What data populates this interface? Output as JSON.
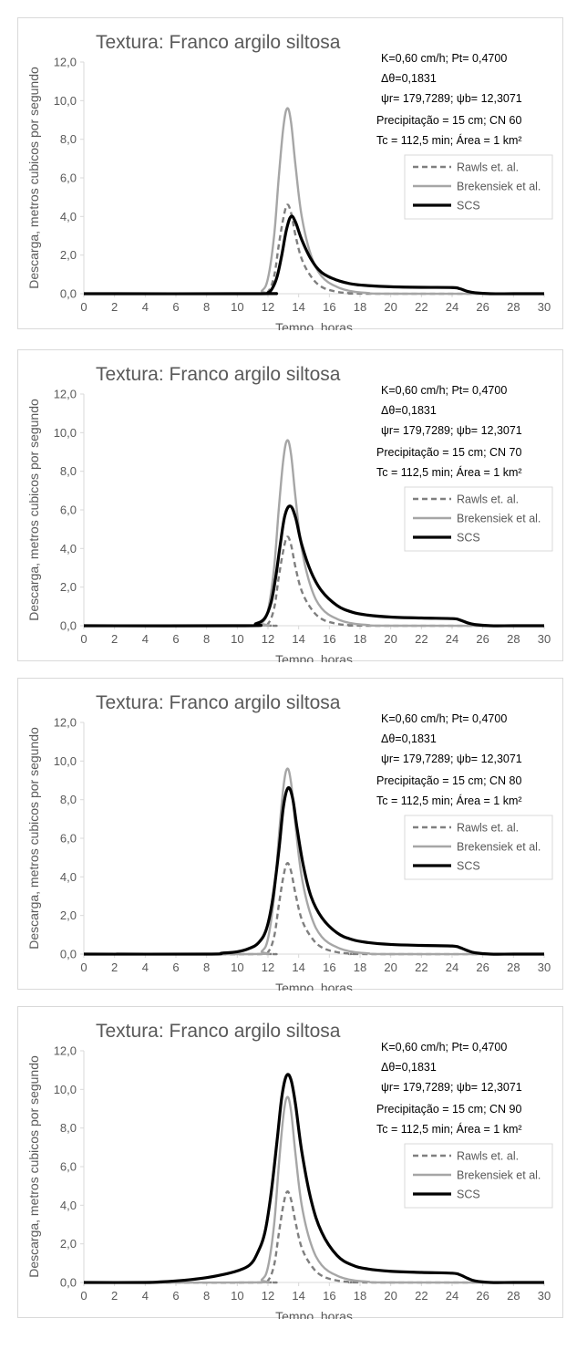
{
  "chart_data": [
    {
      "type": "line",
      "title": "Textura: Franco argilo siltosa",
      "xlabel": "Tempo, horas",
      "ylabel": "Descarga, metros cubicos por segundo",
      "xlim": [
        0,
        30
      ],
      "ylim": [
        0,
        12
      ],
      "x_ticks": [
        "0",
        "2",
        "4",
        "6",
        "8",
        "10",
        "12",
        "14",
        "16",
        "18",
        "20",
        "22",
        "24",
        "26",
        "28",
        "30"
      ],
      "y_ticks": [
        "0,0",
        "2,0",
        "4,0",
        "6,0",
        "8,0",
        "10,0",
        "12,0"
      ],
      "grid": false,
      "legend_position": "right",
      "annotations": [
        "K=0,60 cm/h; Pt= 0,4700",
        "Δθ=0,1831",
        "ψr= 179,7289;  ψb= 12,3071",
        "Precipitação = 15 cm; CN 60",
        "Tc = 112,5 min; Área = 1 km²"
      ],
      "series": [
        {
          "name": "Rawls et. al.",
          "color": "#7f7f7f",
          "dash": "dashed",
          "x": [
            0,
            11.5,
            12.0,
            12.4,
            12.7,
            13.0,
            13.25,
            13.5,
            13.8,
            14.2,
            14.8,
            15.5,
            16.5,
            17.5,
            18.5,
            30
          ],
          "y": [
            0,
            0,
            0.1,
            0.9,
            2.5,
            3.9,
            4.6,
            4.2,
            3.0,
            1.8,
            0.9,
            0.35,
            0.1,
            0.02,
            0,
            0
          ]
        },
        {
          "name": "Brekensiek et al.",
          "color": "#a6a6a6",
          "dash": "solid",
          "x": [
            0,
            11.0,
            11.6,
            12.0,
            12.4,
            12.7,
            13.0,
            13.25,
            13.5,
            13.8,
            14.2,
            14.8,
            15.5,
            16.5,
            17.5,
            18.5,
            20,
            30
          ],
          "y": [
            0,
            0,
            0.15,
            0.8,
            3.0,
            6.0,
            8.6,
            9.6,
            8.9,
            6.6,
            4.0,
            2.0,
            0.9,
            0.35,
            0.12,
            0.04,
            0,
            0
          ]
        },
        {
          "name": "SCS",
          "color": "#000000",
          "dash": "solid",
          "x": [
            0,
            11.5,
            12.0,
            12.3,
            12.6,
            12.9,
            13.2,
            13.5,
            13.8,
            14.2,
            14.8,
            15.5,
            16.5,
            17.5,
            18.5,
            20,
            22,
            24,
            24.5,
            25,
            25.5,
            26.5,
            28,
            30
          ],
          "y": [
            0,
            0,
            0.05,
            0.3,
            0.9,
            2.0,
            3.3,
            4.0,
            3.7,
            2.8,
            1.8,
            1.1,
            0.7,
            0.5,
            0.42,
            0.36,
            0.33,
            0.32,
            0.26,
            0.12,
            0.05,
            0,
            0,
            0
          ]
        }
      ]
    },
    {
      "type": "line",
      "title": "Textura: Franco argilo siltosa",
      "xlabel": "Tempo, horas",
      "ylabel": "Descarga, metros cubicos por segundo",
      "xlim": [
        0,
        30
      ],
      "ylim": [
        0,
        12
      ],
      "x_ticks": [
        "0",
        "2",
        "4",
        "6",
        "8",
        "10",
        "12",
        "14",
        "16",
        "18",
        "20",
        "22",
        "24",
        "26",
        "28",
        "30"
      ],
      "y_ticks": [
        "0,0",
        "2,0",
        "4,0",
        "6,0",
        "8,0",
        "10,0",
        "12,0"
      ],
      "grid": false,
      "legend_position": "right",
      "annotations": [
        "K=0,60 cm/h; Pt= 0,4700",
        "Δθ=0,1831",
        "ψr= 179,7289;  ψb= 12,3071",
        "Precipitação = 15 cm; CN 70",
        "Tc = 112,5 min; Área = 1 km²"
      ],
      "series": [
        {
          "name": "Rawls et. al.",
          "color": "#7f7f7f",
          "dash": "dashed",
          "x": [
            0,
            11.5,
            12.0,
            12.4,
            12.7,
            13.0,
            13.25,
            13.5,
            13.8,
            14.2,
            14.8,
            15.5,
            16.5,
            17.5,
            18.5,
            30
          ],
          "y": [
            0,
            0,
            0.1,
            0.9,
            2.5,
            3.9,
            4.6,
            4.2,
            3.0,
            1.8,
            0.9,
            0.35,
            0.1,
            0.02,
            0,
            0
          ]
        },
        {
          "name": "Brekensiek et al.",
          "color": "#a6a6a6",
          "dash": "solid",
          "x": [
            0,
            11.0,
            11.6,
            12.0,
            12.4,
            12.7,
            13.0,
            13.25,
            13.5,
            13.8,
            14.2,
            14.8,
            15.5,
            16.5,
            17.5,
            18.5,
            20,
            30
          ],
          "y": [
            0,
            0,
            0.15,
            0.8,
            3.0,
            6.0,
            8.6,
            9.6,
            8.9,
            6.6,
            4.0,
            2.0,
            0.9,
            0.35,
            0.12,
            0.04,
            0,
            0
          ]
        },
        {
          "name": "SCS",
          "color": "#000000",
          "dash": "solid",
          "x": [
            0,
            10.5,
            11.2,
            11.8,
            12.2,
            12.5,
            12.8,
            13.1,
            13.45,
            13.8,
            14.2,
            14.8,
            15.5,
            16.5,
            17.5,
            18.5,
            20,
            22,
            24,
            24.5,
            25,
            25.5,
            26.5,
            28,
            30
          ],
          "y": [
            0,
            0,
            0.1,
            0.4,
            1.2,
            2.5,
            4.2,
            5.7,
            6.2,
            5.6,
            4.2,
            2.8,
            1.8,
            1.05,
            0.7,
            0.55,
            0.45,
            0.4,
            0.37,
            0.3,
            0.15,
            0.06,
            0,
            0,
            0
          ]
        }
      ]
    },
    {
      "type": "line",
      "title": "Textura: Franco argilo siltosa",
      "xlabel": "Tempo, horas",
      "ylabel": "Descarga, metros cubicos por segundo",
      "xlim": [
        0,
        30
      ],
      "ylim": [
        0,
        12
      ],
      "x_ticks": [
        "0",
        "2",
        "4",
        "6",
        "8",
        "10",
        "12",
        "14",
        "16",
        "18",
        "20",
        "22",
        "24",
        "26",
        "28",
        "30"
      ],
      "y_ticks": [
        "0,0",
        "2,0",
        "4,0",
        "6,0",
        "8,0",
        "10,0",
        "12,0"
      ],
      "grid": false,
      "legend_position": "right",
      "annotations": [
        "K=0,60 cm/h; Pt= 0,4700",
        "Δθ=0,1831",
        "ψr= 179,7289;  ψb= 12,3071",
        "Precipitação = 15 cm; CN 80",
        "Tc = 112,5 min; Área = 1 km²"
      ],
      "series": [
        {
          "name": "Rawls et. al.",
          "color": "#7f7f7f",
          "dash": "dashed",
          "x": [
            0,
            11.5,
            12.0,
            12.4,
            12.7,
            13.0,
            13.25,
            13.5,
            13.8,
            14.2,
            14.8,
            15.5,
            16.5,
            17.5,
            18.5,
            30
          ],
          "y": [
            0,
            0,
            0.1,
            0.9,
            2.5,
            4.0,
            4.7,
            4.3,
            3.1,
            1.8,
            0.9,
            0.35,
            0.1,
            0.02,
            0,
            0
          ]
        },
        {
          "name": "Brekensiek et al.",
          "color": "#a6a6a6",
          "dash": "solid",
          "x": [
            0,
            11.0,
            11.6,
            12.0,
            12.4,
            12.7,
            13.0,
            13.25,
            13.5,
            13.8,
            14.2,
            14.8,
            15.5,
            16.5,
            17.5,
            18.5,
            20,
            30
          ],
          "y": [
            0,
            0,
            0.15,
            0.8,
            3.0,
            6.0,
            8.6,
            9.6,
            8.9,
            6.6,
            4.0,
            2.0,
            0.9,
            0.35,
            0.12,
            0.04,
            0,
            0
          ]
        },
        {
          "name": "SCS",
          "color": "#000000",
          "dash": "solid",
          "x": [
            0,
            8.0,
            9.0,
            10.0,
            10.8,
            11.4,
            11.9,
            12.3,
            12.7,
            13.0,
            13.3,
            13.6,
            13.9,
            14.3,
            14.8,
            15.5,
            16.5,
            17.5,
            18.5,
            20,
            22,
            24,
            24.5,
            25,
            25.5,
            26.5,
            28,
            30
          ],
          "y": [
            0,
            0,
            0.05,
            0.12,
            0.3,
            0.6,
            1.3,
            2.8,
            5.3,
            7.6,
            8.6,
            8.1,
            6.5,
            4.6,
            3.0,
            1.9,
            1.1,
            0.75,
            0.6,
            0.5,
            0.45,
            0.42,
            0.34,
            0.18,
            0.07,
            0,
            0,
            0
          ]
        }
      ]
    },
    {
      "type": "line",
      "title": "Textura: Franco argilo siltosa",
      "xlabel": "Tempo, horas",
      "ylabel": "Descarga, metros cubicos por segundo",
      "xlim": [
        0,
        30
      ],
      "ylim": [
        0,
        12
      ],
      "x_ticks": [
        "0",
        "2",
        "4",
        "6",
        "8",
        "10",
        "12",
        "14",
        "16",
        "18",
        "20",
        "22",
        "24",
        "26",
        "28",
        "30"
      ],
      "y_ticks": [
        "0,0",
        "2,0",
        "4,0",
        "6,0",
        "8,0",
        "10,0",
        "12,0"
      ],
      "grid": false,
      "legend_position": "right",
      "annotations": [
        "K=0,60 cm/h; Pt= 0,4700",
        "Δθ=0,1831",
        "ψr= 179,7289;  ψb= 12,3071",
        "Precipitação = 15 cm; CN 90",
        "Tc = 112,5 min; Área = 1 km²"
      ],
      "series": [
        {
          "name": "Rawls et. al.",
          "color": "#7f7f7f",
          "dash": "dashed",
          "x": [
            0,
            11.5,
            12.0,
            12.4,
            12.7,
            13.0,
            13.25,
            13.5,
            13.8,
            14.2,
            14.8,
            15.5,
            16.5,
            17.5,
            18.5,
            30
          ],
          "y": [
            0,
            0,
            0.1,
            0.9,
            2.5,
            4.0,
            4.7,
            4.3,
            3.1,
            1.8,
            0.9,
            0.35,
            0.1,
            0.02,
            0,
            0
          ]
        },
        {
          "name": "Brekensiek et al.",
          "color": "#a6a6a6",
          "dash": "solid",
          "x": [
            0,
            11.0,
            11.6,
            12.0,
            12.4,
            12.7,
            13.0,
            13.25,
            13.5,
            13.8,
            14.2,
            14.8,
            15.5,
            16.5,
            17.5,
            18.5,
            20,
            30
          ],
          "y": [
            0,
            0,
            0.15,
            0.8,
            3.0,
            6.0,
            8.6,
            9.6,
            8.9,
            6.6,
            4.0,
            2.0,
            0.9,
            0.35,
            0.12,
            0.04,
            0,
            0
          ]
        },
        {
          "name": "SCS",
          "color": "#000000",
          "dash": "solid",
          "x": [
            0,
            4.0,
            5.0,
            6.0,
            7.0,
            8.0,
            9.0,
            10.0,
            10.8,
            11.3,
            11.8,
            12.2,
            12.6,
            12.9,
            13.2,
            13.5,
            13.8,
            14.2,
            14.8,
            15.5,
            16.5,
            17.5,
            18.5,
            20,
            22,
            24,
            24.5,
            25,
            25.5,
            26.5,
            28,
            30
          ],
          "y": [
            0,
            0,
            0.03,
            0.08,
            0.15,
            0.25,
            0.4,
            0.6,
            0.9,
            1.5,
            2.6,
            4.6,
            7.4,
            9.6,
            10.7,
            10.5,
            9.2,
            6.8,
            4.3,
            2.6,
            1.4,
            0.9,
            0.7,
            0.58,
            0.52,
            0.48,
            0.4,
            0.22,
            0.08,
            0,
            0,
            0
          ]
        }
      ]
    }
  ]
}
